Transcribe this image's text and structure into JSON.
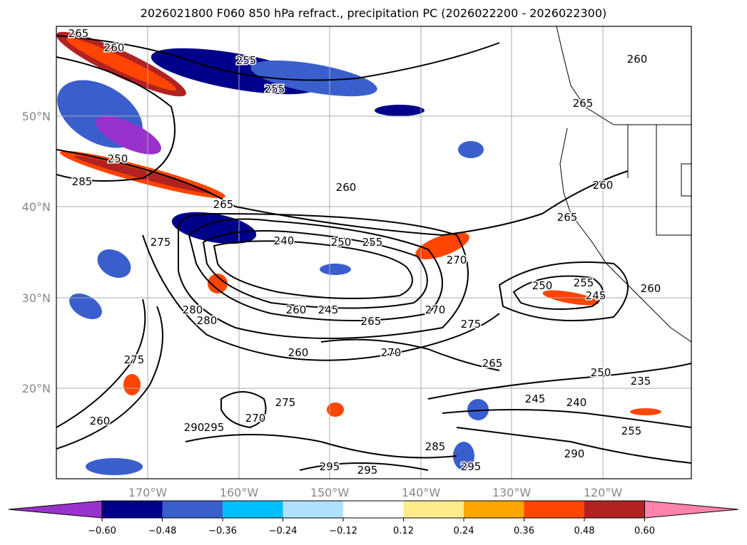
{
  "title": "2026021800 F060 850 hPa refract., precipitation PC (2026022200 - 2026022300)",
  "lon_labels": [
    "170°W",
    "160°W",
    "150°W",
    "140°W",
    "130°W",
    "120°W"
  ],
  "lat_labels": [
    "50°N",
    "40°N",
    "30°N",
    "20°N"
  ],
  "colorbar": {
    "ticks": [
      "−0.60",
      "−0.48",
      "−0.36",
      "−0.24",
      "−0.12",
      "0.12",
      "0.24",
      "0.36",
      "0.48",
      "0.60"
    ],
    "colors": [
      "#9932cc",
      "#00008b",
      "#3a5fcd",
      "#00bfff",
      "#b0e2ff",
      "#ffffff",
      "#ffec8b",
      "#ffa500",
      "#ff4500",
      "#b22222",
      "#ff82ab"
    ]
  },
  "contour_labels": [
    "265",
    "260",
    "255",
    "255",
    "250",
    "260",
    "265",
    "275",
    "240",
    "250",
    "255",
    "270",
    "280",
    "260",
    "245",
    "265",
    "270",
    "275",
    "280",
    "270",
    "265",
    "250",
    "235",
    "245",
    "240",
    "255",
    "285",
    "290",
    "295",
    "295",
    "295",
    "275",
    "270",
    "290",
    "295",
    "260",
    "265",
    "285",
    "260",
    "265",
    "260",
    "260",
    "250",
    "255",
    "245",
    "260",
    "275"
  ]
}
